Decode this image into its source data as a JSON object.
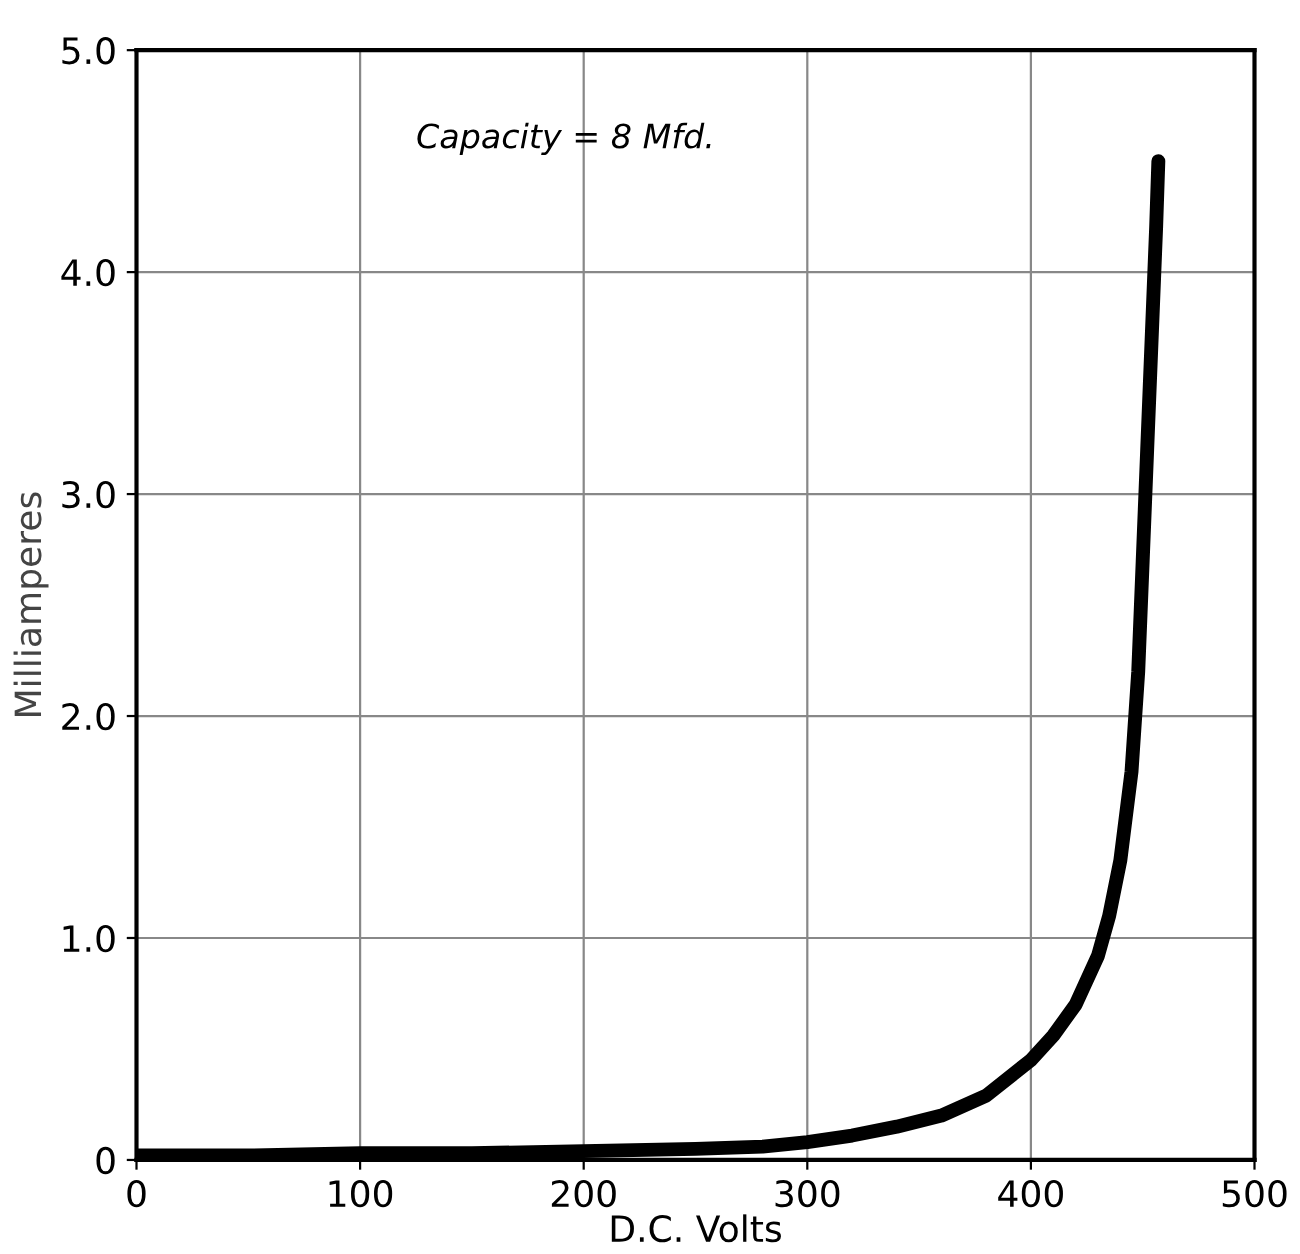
{
  "chart_data": {
    "type": "line",
    "xlabel": "D.C. Volts",
    "ylabel": "Milliamperes",
    "annotations": [
      "Capacity = 8 Mfd."
    ],
    "x": [
      0,
      50,
      100,
      150,
      200,
      250,
      280,
      300,
      320,
      340,
      360,
      380,
      400,
      410,
      420,
      430,
      435,
      440,
      445,
      448,
      450,
      452,
      454,
      456,
      457
    ],
    "series": [
      {
        "color": "#000000",
        "values": [
          0.02,
          0.02,
          0.03,
          0.03,
          0.04,
          0.05,
          0.06,
          0.08,
          0.11,
          0.15,
          0.2,
          0.29,
          0.45,
          0.56,
          0.7,
          0.92,
          1.1,
          1.35,
          1.75,
          2.2,
          2.7,
          3.2,
          3.7,
          4.2,
          4.5
        ]
      }
    ],
    "xlim": [
      0,
      500
    ],
    "ylim": [
      0,
      5
    ],
    "xticks": [
      0,
      100,
      200,
      300,
      400,
      500
    ],
    "yticks": [
      {
        "value": 0,
        "label": "0"
      },
      {
        "value": 1,
        "label": "1.0"
      },
      {
        "value": 2,
        "label": "2.0"
      },
      {
        "value": 3,
        "label": "3.0"
      },
      {
        "value": 4,
        "label": "4.0"
      },
      {
        "value": 5,
        "label": "5.0"
      }
    ],
    "grid": true,
    "line_style": "solid",
    "marker": "none"
  }
}
